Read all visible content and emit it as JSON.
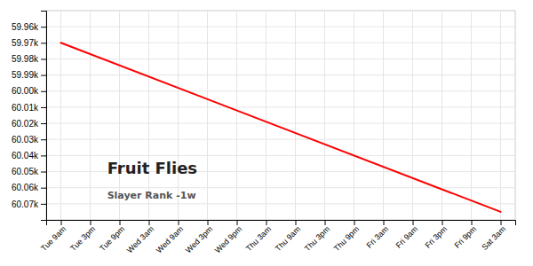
{
  "chart_data": {
    "type": "line",
    "title": "Fruit Flies",
    "subtitle": "Slayer Rank -1w",
    "categories": [
      "Tue 9am",
      "Tue 3pm",
      "Tue 9pm",
      "Wed 3am",
      "Wed 9am",
      "Wed 3pm",
      "Wed 9pm",
      "Thu 3am",
      "Thu 9am",
      "Thu 3pm",
      "Thu 9pm",
      "Fri 3am",
      "Fri 9am",
      "Fri 3pm",
      "Fri 9pm",
      "Sat 3am"
    ],
    "series": [
      {
        "color": "#ff0000",
        "x": [
          "Tue 9am",
          "Sat 3am"
        ],
        "values": [
          59970,
          60075
        ]
      }
    ],
    "ylim": [
      60080,
      59950
    ],
    "yticks": [
      {
        "value": 59960,
        "label": "59.96k"
      },
      {
        "value": 59970,
        "label": "59.97k"
      },
      {
        "value": 59980,
        "label": "59.98k"
      },
      {
        "value": 59990,
        "label": "59.99k"
      },
      {
        "value": 60000,
        "label": "60.00k"
      },
      {
        "value": 60010,
        "label": "60.01k"
      },
      {
        "value": 60020,
        "label": "60.02k"
      },
      {
        "value": 60030,
        "label": "60.03k"
      },
      {
        "value": 60040,
        "label": "60.04k"
      },
      {
        "value": 60050,
        "label": "60.05k"
      },
      {
        "value": 60060,
        "label": "60.06k"
      },
      {
        "value": 60070,
        "label": "60.07k"
      }
    ],
    "grid": true
  }
}
